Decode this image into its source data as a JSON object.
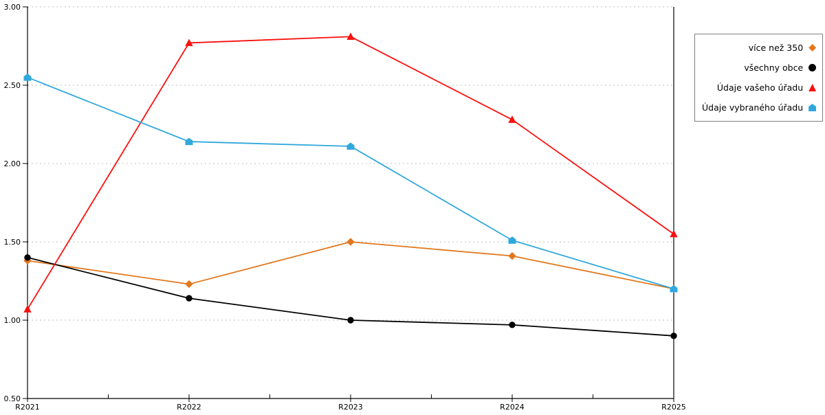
{
  "chart_data": {
    "type": "line",
    "title": "",
    "xlabel": "",
    "ylabel": "",
    "categories": [
      "R2021",
      "R2022",
      "R2023",
      "R2024",
      "R2025"
    ],
    "series": [
      {
        "name": "více než 350",
        "color": "#E2771C",
        "marker": "diamond",
        "values": [
          1.38,
          1.23,
          1.5,
          1.41,
          1.2
        ]
      },
      {
        "name": "všechny obce",
        "color": "#000000",
        "marker": "circle",
        "values": [
          1.4,
          1.14,
          1.0,
          0.97,
          0.9
        ]
      },
      {
        "name": "Údaje vašeho úřadu",
        "color": "#FA100C",
        "marker": "triangle",
        "values": [
          1.07,
          2.77,
          2.81,
          2.28,
          1.55
        ]
      },
      {
        "name": "Údaje vybraného úřadu",
        "color": "#2FA8DC",
        "marker": "pentagon",
        "values": [
          2.55,
          2.14,
          2.11,
          1.51,
          1.2
        ]
      }
    ],
    "ylim": [
      0.5,
      3.0
    ],
    "ytick_step": 0.5,
    "ytick_labels": [
      "0.50",
      "1.00",
      "1.50",
      "2.00",
      "2.50",
      "3.00"
    ],
    "grid": "horizontal-dotted",
    "legend_position": "top-right"
  },
  "colors": {
    "grid": "#BDBDBD",
    "axis": "#000000",
    "legend_border": "#7F7F7F",
    "background": "#FFFFFF"
  }
}
